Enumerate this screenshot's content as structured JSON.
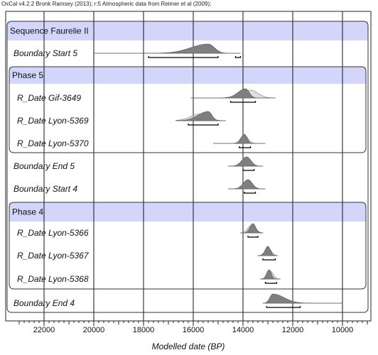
{
  "header_note": "OxCal v4.2.2 Bronk Ramsey (2013); r:5 Atmospheric data from Reimer et al (2009);",
  "chart_data": {
    "type": "area",
    "title": "",
    "xlabel": "Modelled date (BP)",
    "ylabel": "",
    "x_range": [
      23200,
      9000
    ],
    "x_direction": "descending-left-to-right",
    "x_ticks": [
      22000,
      20000,
      18000,
      16000,
      14000,
      12000,
      10000
    ],
    "x_tick_labels": [
      "22000",
      "20000",
      "18000",
      "16000",
      "14000",
      "12000",
      "10000"
    ],
    "grid": true,
    "colors": {
      "header_band": "#d3d6fa",
      "posterior": "#7f7f7f",
      "prior": "#c4c4c4",
      "range_bar": "#000000",
      "grid": "#111111"
    },
    "groups": [
      {
        "label": "Sequence Faurelie II",
        "kind": "sequence"
      },
      {
        "label": "Phase 5",
        "kind": "phase"
      },
      {
        "label": "Phase 4",
        "kind": "phase"
      }
    ],
    "rows": [
      {
        "label": "Boundary Start 5",
        "kind": "boundary",
        "group": "Sequence Faurelie II",
        "tail_from": 20000,
        "tail_to": 14100,
        "posterior": {
          "peak": 15400,
          "sigma_left": 700,
          "sigma_right": 250,
          "height": 1.0
        },
        "ranges": [
          [
            17800,
            15000
          ],
          [
            14300,
            14100
          ]
        ]
      },
      {
        "label": "R_Date Gif-3649",
        "kind": "date",
        "group": "Phase 5",
        "tail_from": 16100,
        "tail_to": 12700,
        "prior": {
          "peak": 13700,
          "sigma_left": 400,
          "sigma_right": 300,
          "height": 0.85
        },
        "posterior": {
          "peak": 13900,
          "sigma_left": 300,
          "sigma_right": 150,
          "height": 1.0
        },
        "ranges": [
          [
            14500,
            13500
          ]
        ]
      },
      {
        "label": "R_Date Lyon-5369",
        "kind": "date",
        "group": "Phase 5",
        "tail_from": 16700,
        "tail_to": 14700,
        "prior": {
          "peak": 15700,
          "sigma_left": 400,
          "sigma_right": 300,
          "height": 0.75
        },
        "posterior": {
          "peak": 15400,
          "sigma_left": 400,
          "sigma_right": 150,
          "height": 1.0
        },
        "ranges": [
          [
            16200,
            15000
          ]
        ]
      },
      {
        "label": "R_Date Lyon-5370",
        "kind": "date",
        "group": "Phase 5",
        "tail_from": 15200,
        "tail_to": 13100,
        "prior": {
          "peak": 13950,
          "sigma_left": 150,
          "sigma_right": 150,
          "height": 0.9
        },
        "posterior": {
          "peak": 13950,
          "sigma_left": 120,
          "sigma_right": 110,
          "height": 1.0
        },
        "ranges": [
          [
            14150,
            13700
          ]
        ]
      },
      {
        "label": "Boundary End 5",
        "kind": "boundary",
        "group": "",
        "tail_from": 14600,
        "tail_to": 13200,
        "posterior": {
          "peak": 13850,
          "sigma_left": 200,
          "sigma_right": 170,
          "height": 1.0
        },
        "ranges": [
          [
            14000,
            13550
          ]
        ]
      },
      {
        "label": "Boundary Start 4",
        "kind": "boundary",
        "group": "",
        "tail_from": 14600,
        "tail_to": 13100,
        "posterior": {
          "peak": 13800,
          "sigma_left": 190,
          "sigma_right": 170,
          "height": 1.0
        },
        "ranges": [
          [
            13950,
            13500
          ]
        ]
      },
      {
        "label": "R_Date Lyon-5366",
        "kind": "date",
        "group": "Phase 4",
        "tail_from": 14100,
        "tail_to": 13200,
        "prior": {
          "peak": 13650,
          "sigma_left": 150,
          "sigma_right": 150,
          "height": 0.85
        },
        "posterior": {
          "peak": 13600,
          "sigma_left": 120,
          "sigma_right": 110,
          "height": 1.0
        },
        "ranges": [
          [
            13800,
            13400
          ]
        ]
      },
      {
        "label": "R_Date Lyon-5367",
        "kind": "date",
        "group": "Phase 4",
        "tail_from": 13400,
        "tail_to": 12600,
        "prior": {
          "peak": 13000,
          "sigma_left": 120,
          "sigma_right": 130,
          "height": 0.85
        },
        "posterior": {
          "peak": 13000,
          "sigma_left": 110,
          "sigma_right": 100,
          "height": 1.0
        },
        "ranges": [
          [
            13200,
            12700
          ]
        ]
      },
      {
        "label": "R_Date Lyon-5368",
        "kind": "date",
        "group": "Phase 4",
        "tail_from": 13300,
        "tail_to": 12500,
        "prior": {
          "peak": 12900,
          "sigma_left": 120,
          "sigma_right": 120,
          "height": 0.85
        },
        "posterior": {
          "peak": 12950,
          "sigma_left": 100,
          "sigma_right": 90,
          "height": 1.0
        },
        "ranges": [
          [
            13100,
            12650
          ]
        ]
      },
      {
        "label": "Boundary End 4",
        "kind": "boundary",
        "group": "",
        "tail_from": 13200,
        "tail_to": 10000,
        "posterior": {
          "peak": 12800,
          "sigma_left": 120,
          "sigma_right": 450,
          "height": 1.0
        },
        "ranges": [
          [
            13050,
            11700
          ]
        ]
      }
    ]
  }
}
